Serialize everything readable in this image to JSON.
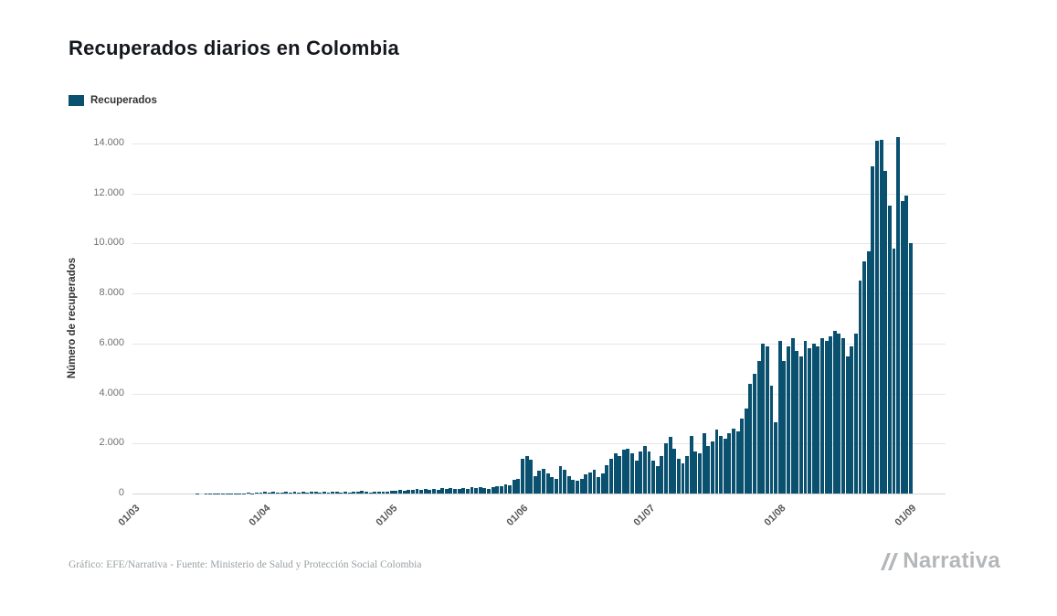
{
  "title": "Recuperados diarios en Colombia",
  "legend": {
    "label": "Recuperados",
    "color": "#0a506f"
  },
  "y_axis": {
    "label": "Número de recuperados",
    "ticks": [
      "0",
      "2.000",
      "4.000",
      "6.000",
      "8.000",
      "10.000",
      "12.000",
      "14.000"
    ]
  },
  "x_axis": {
    "ticks": [
      "01/03",
      "01/04",
      "01/05",
      "01/06",
      "01/07",
      "01/08",
      "01/09"
    ]
  },
  "footer": {
    "credit": "Gráfico: EFE/Narrativa - Fuente: Ministerio de Salud y Protección Social Colombia",
    "brand": "Narrativa"
  },
  "chart_data": {
    "type": "bar",
    "title": "Recuperados diarios en Colombia",
    "xlabel": "",
    "ylabel": "Número de recuperados",
    "ylim": [
      0,
      14000
    ],
    "grid": "horizontal",
    "legend_position": "top-left",
    "series_name": "Recuperados",
    "bar_color": "#0a506f",
    "x_start": "01/03",
    "x_end": "01/09",
    "x_tick_labels": [
      "01/03",
      "01/04",
      "01/05",
      "01/06",
      "01/07",
      "01/08",
      "01/09"
    ],
    "x_tick_day_indices": [
      0,
      31,
      61,
      92,
      122,
      153,
      184
    ],
    "y_tick_values": [
      0,
      2000,
      4000,
      6000,
      8000,
      10000,
      12000,
      14000
    ],
    "values": [
      0,
      0,
      0,
      0,
      0,
      0,
      0,
      0,
      0,
      0,
      0,
      0,
      0,
      2,
      1,
      3,
      2,
      5,
      4,
      6,
      8,
      10,
      7,
      12,
      15,
      10,
      18,
      22,
      16,
      25,
      30,
      60,
      45,
      70,
      30,
      55,
      80,
      40,
      65,
      50,
      75,
      35,
      60,
      85,
      45,
      70,
      55,
      90,
      60,
      40,
      75,
      50,
      85,
      65,
      95,
      70,
      55,
      80,
      60,
      90,
      75,
      120,
      100,
      140,
      110,
      160,
      130,
      180,
      150,
      170,
      140,
      190,
      160,
      210,
      180,
      230,
      200,
      170,
      220,
      190,
      240,
      210,
      260,
      230,
      200,
      250,
      300,
      280,
      350,
      320,
      550,
      600,
      1400,
      1500,
      1350,
      700,
      900,
      1000,
      800,
      650,
      600,
      1100,
      950,
      700,
      550,
      500,
      600,
      750,
      850,
      950,
      650,
      800,
      1150,
      1400,
      1600,
      1500,
      1750,
      1800,
      1600,
      1300,
      1700,
      1900,
      1700,
      1300,
      1100,
      1500,
      2000,
      2250,
      1800,
      1400,
      1200,
      1500,
      2300,
      1700,
      1600,
      2400,
      1900,
      2100,
      2550,
      2300,
      2200,
      2400,
      2600,
      2500,
      3000,
      3400,
      4400,
      4800,
      5300,
      6000,
      5900,
      4300,
      2850,
      6100,
      5300,
      5900,
      6200,
      5700,
      5500,
      6100,
      5800,
      6000,
      5900,
      6200,
      6100,
      6300,
      6500,
      6400,
      6200,
      5500,
      5900,
      6400,
      8500,
      9300,
      9700,
      13100,
      14100,
      14150,
      12900,
      11500,
      9800,
      14250,
      11700,
      11900,
      10000
    ]
  }
}
